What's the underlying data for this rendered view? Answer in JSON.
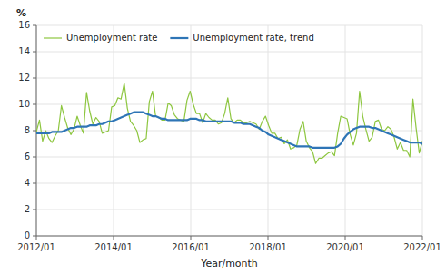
{
  "chart_data": {
    "type": "line",
    "xlabel": "Year/month",
    "ylabel": "%",
    "x": [
      0,
      0.97561,
      1.95122,
      2.92683,
      3.90244,
      4.87805,
      5.85366,
      6.82927,
      7.80488,
      8.78049,
      9.7561,
      10.73171,
      11.70732,
      12.68293,
      13.65854,
      14.63415,
      15.60976,
      16.58537,
      17.56098,
      18.53659,
      19.5122,
      20.4878,
      21.46341,
      22.43902,
      23.41463,
      24.39024,
      25.36585,
      26.34146,
      27.31707,
      28.29268,
      29.26829,
      30.2439,
      31.21951,
      32.19512,
      33.17073,
      34.14634,
      35.12195,
      36.09756,
      37.07317,
      38.04878,
      39.02439,
      40,
      40.97561,
      41.95122,
      42.92683,
      43.90244,
      44.87805,
      45.85366,
      46.82927,
      47.80488,
      48.78049,
      49.7561,
      50.73171,
      51.70732,
      52.68293,
      53.65854,
      54.63415,
      55.60976,
      56.58537,
      57.56098,
      58.53659,
      59.5122,
      60.4878,
      61.46341,
      62.43902,
      63.41463,
      64.39024,
      65.36585,
      66.34146,
      67.31707,
      68.29268,
      69.26829,
      70.2439,
      71.21951,
      72.19512,
      73.17073,
      74.14634,
      75.12195,
      76.09756,
      77.07317,
      78.04878,
      79.02439,
      80,
      80.97561,
      81.95122,
      82.92683,
      83.90244,
      84.87805,
      85.85366,
      86.82927,
      87.80488,
      88.78049,
      89.7561,
      90.73171,
      91.70732,
      92.68293,
      93.65854,
      94.63415,
      95.60976,
      96.58537,
      97.56098,
      98.53659,
      99.5122,
      100.4878,
      101.46341,
      102.43902,
      103.41463,
      104.39024,
      105.36585,
      106.34146,
      107.31707,
      108.29268,
      109.26829,
      110.2439,
      111.21951,
      112.19512,
      113.17073,
      114.14634,
      115.12195,
      116.09756,
      117.07317,
      118.04878,
      119.02439,
      120
    ],
    "series": [
      {
        "name": "Unemployment rate",
        "color": "#8dc63f",
        "values": [
          7.9,
          8.8,
          7.2,
          8.0,
          7.4,
          7.1,
          7.6,
          8.0,
          9.9,
          9.0,
          8.2,
          7.7,
          8.1,
          9.1,
          8.4,
          7.8,
          10.9,
          9.5,
          8.5,
          9.0,
          8.7,
          7.8,
          7.9,
          8.0,
          9.8,
          9.9,
          10.5,
          10.4,
          11.6,
          9.7,
          8.7,
          8.4,
          8.0,
          7.1,
          7.3,
          7.4,
          10.2,
          11.0,
          9.1,
          9.0,
          8.8,
          8.8,
          10.1,
          9.9,
          9.2,
          8.9,
          8.8,
          8.7,
          10.3,
          11.0,
          10.0,
          9.3,
          9.3,
          8.6,
          9.3,
          9.0,
          8.8,
          8.8,
          8.5,
          8.6,
          9.3,
          10.5,
          8.9,
          8.6,
          8.8,
          8.8,
          8.6,
          8.6,
          8.7,
          8.6,
          8.5,
          8.1,
          8.7,
          9.1,
          8.4,
          7.8,
          7.8,
          7.4,
          7.5,
          7.0,
          7.3,
          6.6,
          6.7,
          6.9,
          8.1,
          8.7,
          7.2,
          6.7,
          6.4,
          5.5,
          5.9,
          5.9,
          6.1,
          6.3,
          6.4,
          6.1,
          7.8,
          9.1,
          9.0,
          8.9,
          7.7,
          6.9,
          7.8,
          11.0,
          9.1,
          8.1,
          7.2,
          7.5,
          8.7,
          8.8,
          8.1,
          8.0,
          8.3,
          8.1,
          7.5,
          6.6,
          7.1,
          6.5,
          6.5,
          6.0,
          10.4,
          8.2,
          6.3,
          7.2
        ]
      },
      {
        "name": "Unemployment rate, trend",
        "color": "#2e75b6",
        "values": [
          7.8,
          7.8,
          7.8,
          7.8,
          7.8,
          7.9,
          7.9,
          7.9,
          7.9,
          8.0,
          8.1,
          8.2,
          8.2,
          8.3,
          8.3,
          8.3,
          8.3,
          8.4,
          8.4,
          8.4,
          8.5,
          8.5,
          8.6,
          8.7,
          8.7,
          8.8,
          8.9,
          9.0,
          9.1,
          9.2,
          9.3,
          9.4,
          9.4,
          9.4,
          9.4,
          9.3,
          9.2,
          9.1,
          9.1,
          9.0,
          8.9,
          8.9,
          8.8,
          8.8,
          8.8,
          8.8,
          8.8,
          8.8,
          8.8,
          8.9,
          8.9,
          8.9,
          8.8,
          8.8,
          8.7,
          8.7,
          8.7,
          8.7,
          8.7,
          8.7,
          8.7,
          8.7,
          8.7,
          8.6,
          8.6,
          8.6,
          8.5,
          8.5,
          8.5,
          8.4,
          8.3,
          8.2,
          8.0,
          7.9,
          7.7,
          7.6,
          7.5,
          7.4,
          7.3,
          7.2,
          7.1,
          7.0,
          6.9,
          6.8,
          6.8,
          6.8,
          6.8,
          6.8,
          6.7,
          6.7,
          6.7,
          6.7,
          6.7,
          6.7,
          6.7,
          6.7,
          6.8,
          7.0,
          7.4,
          7.7,
          7.9,
          8.1,
          8.2,
          8.3,
          8.3,
          8.3,
          8.3,
          8.2,
          8.2,
          8.1,
          8.0,
          7.9,
          7.8,
          7.7,
          7.6,
          7.5,
          7.4,
          7.3,
          7.2,
          7.1,
          7.1,
          7.1,
          7.1,
          7.0
        ]
      }
    ],
    "xlim": [
      0,
      120
    ],
    "xticks": [
      {
        "value": 0,
        "label": "2012/01"
      },
      {
        "value": 24,
        "label": "2014/01"
      },
      {
        "value": 48,
        "label": "2016/01"
      },
      {
        "value": 72,
        "label": "2018/01"
      },
      {
        "value": 96,
        "label": "2020/01"
      },
      {
        "value": 120,
        "label": "2022/01"
      }
    ],
    "ylim": [
      0,
      16
    ],
    "yticks": [
      0,
      2,
      4,
      6,
      8,
      10,
      12,
      14,
      16
    ],
    "grid": true,
    "legend": "upper left"
  }
}
